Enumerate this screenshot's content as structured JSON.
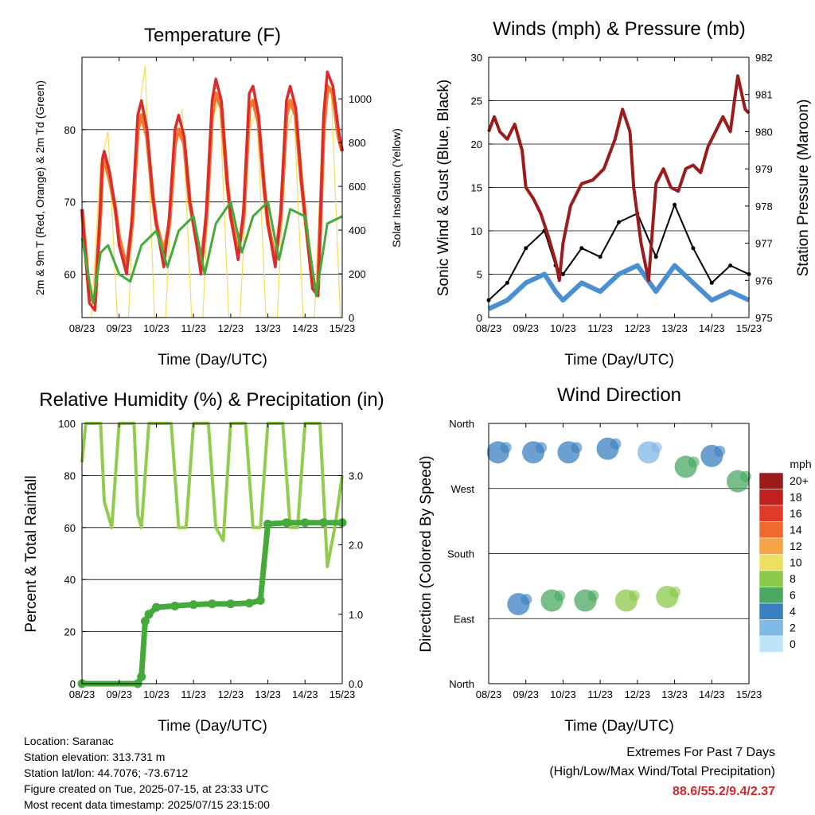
{
  "days": [
    "08/23",
    "09/23",
    "10/23",
    "11/23",
    "12/23",
    "13/23",
    "14/23",
    "15/23"
  ],
  "xlabel": "Time (Day/UTC)",
  "panels": {
    "temperature": {
      "title": "Temperature (F)",
      "ylabel_left": "2m & 9m T (Red, Orange) & 2m Td (Green)",
      "ylabel_right": "Solar Insolation (Yellow)",
      "left_ticks": [
        60,
        70,
        80
      ],
      "right_ticks": [
        0,
        200,
        400,
        600,
        800,
        1000
      ]
    },
    "wind": {
      "title": "Winds (mph) & Pressure (mb)",
      "ylabel_left": "Sonic Wind & Gust (Blue, Black)",
      "ylabel_right": "Station Pressure (Maroon)",
      "left_ticks": [
        0,
        5,
        10,
        15,
        20,
        25,
        30
      ],
      "right_ticks": [
        975,
        976,
        977,
        978,
        979,
        980,
        981,
        982
      ]
    },
    "humidity": {
      "title": "Relative Humidity (%) & Precipitation (in)",
      "ylabel_left": "Percent & Total Rainfall",
      "left_ticks": [
        0,
        20,
        40,
        60,
        80,
        100
      ],
      "right_ticks": [
        "0.0",
        "1.0",
        "2.0",
        "3.0"
      ]
    },
    "direction": {
      "title": "Wind Direction",
      "ylabel_left": "Direction (Colored By Speed)",
      "dir_labels": [
        "North",
        "East",
        "South",
        "West",
        "North"
      ],
      "legend_title": "mph",
      "legend_labels": [
        "20+",
        "18",
        "16",
        "14",
        "12",
        "10",
        "8",
        "6",
        "4",
        "2",
        "0"
      ]
    }
  },
  "chart_data": [
    {
      "type": "line",
      "title": "Temperature (F)",
      "xlabel": "Time (Day/UTC)",
      "ylabel": "2m & 9m T (Red, Orange) & 2m Td (Green)",
      "y2label": "Solar Insolation (Yellow)",
      "ylim": [
        54,
        90
      ],
      "y2lim": [
        0,
        1190
      ],
      "x_range_days": [
        0,
        7
      ],
      "series": [
        {
          "name": "2m T",
          "color": "#dd2a2a",
          "x": [
            0,
            0.2,
            0.35,
            0.5,
            0.55,
            0.6,
            0.75,
            0.9,
            1,
            1.2,
            1.35,
            1.5,
            1.6,
            1.75,
            1.9,
            2,
            2.2,
            2.35,
            2.5,
            2.6,
            2.75,
            2.9,
            3,
            3.2,
            3.35,
            3.5,
            3.6,
            3.75,
            3.9,
            4,
            4.2,
            4.35,
            4.5,
            4.6,
            4.75,
            4.9,
            5,
            5.2,
            5.35,
            5.5,
            5.6,
            5.75,
            5.9,
            6,
            6.2,
            6.35,
            6.5,
            6.6,
            6.75,
            6.9,
            7
          ],
          "values": [
            69,
            56,
            55,
            70,
            76,
            77,
            74,
            69,
            64,
            60,
            68,
            82,
            84,
            80,
            71,
            67,
            61,
            68,
            80,
            82,
            79,
            70,
            67,
            60,
            69,
            84,
            87,
            84,
            73,
            68,
            62,
            69,
            85,
            86,
            82,
            72,
            67,
            61,
            69,
            84,
            86,
            83,
            73,
            68,
            58,
            57,
            82,
            88,
            86,
            80,
            77
          ]
        },
        {
          "name": "9m T",
          "color": "#f07a2a",
          "x": [
            0,
            0.2,
            0.35,
            0.5,
            0.55,
            0.6,
            0.75,
            0.9,
            1,
            1.2,
            1.35,
            1.5,
            1.6,
            1.75,
            1.9,
            2,
            2.2,
            2.35,
            2.5,
            2.6,
            2.75,
            2.9,
            3,
            3.2,
            3.35,
            3.5,
            3.6,
            3.75,
            3.9,
            4,
            4.2,
            4.35,
            4.5,
            4.6,
            4.75,
            4.9,
            5,
            5.2,
            5.35,
            5.5,
            5.6,
            5.75,
            5.9,
            6,
            6.2,
            6.35,
            6.5,
            6.6,
            6.75,
            6.9,
            7
          ],
          "values": [
            69,
            57,
            56,
            69,
            75,
            76,
            73,
            69,
            65,
            61,
            67,
            80,
            82,
            79,
            71,
            67,
            63,
            67,
            78,
            80,
            78,
            70,
            67,
            61,
            68,
            82,
            85,
            83,
            73,
            68,
            63,
            68,
            83,
            84,
            81,
            72,
            67,
            62,
            68,
            82,
            84,
            82,
            73,
            68,
            59,
            58,
            80,
            86,
            85,
            79,
            77
          ]
        },
        {
          "name": "2m Td",
          "color": "#44aa3a",
          "x": [
            0,
            0.3,
            0.5,
            0.7,
            1,
            1.3,
            1.6,
            2,
            2.3,
            2.6,
            3,
            3.3,
            3.6,
            4,
            4.3,
            4.6,
            5,
            5.3,
            5.6,
            6,
            6.3,
            6.6,
            7
          ],
          "values": [
            65,
            56,
            63,
            64,
            60,
            59,
            64,
            66,
            61,
            66,
            68,
            60,
            67,
            70,
            63,
            68,
            70,
            62,
            69,
            68,
            57,
            67,
            68
          ]
        },
        {
          "name": "Solar Insolation",
          "axis": "right",
          "color": "#f4dc5a",
          "x": [
            0,
            0.25,
            0.5,
            0.7,
            0.95,
            1.25,
            1.5,
            1.7,
            1.95,
            2.25,
            2.5,
            2.7,
            2.95,
            3.25,
            3.5,
            3.7,
            3.95,
            4.25,
            4.5,
            4.7,
            4.95,
            5.25,
            5.5,
            5.7,
            5.95,
            6.25,
            6.5,
            6.7,
            6.95,
            7
          ],
          "values": [
            0,
            0,
            700,
            850,
            0,
            0,
            900,
            1150,
            0,
            0,
            850,
            950,
            0,
            0,
            900,
            1000,
            0,
            0,
            850,
            950,
            0,
            0,
            850,
            950,
            0,
            0,
            950,
            1050,
            0,
            0
          ]
        }
      ]
    },
    {
      "type": "line",
      "title": "Winds (mph) & Pressure (mb)",
      "xlabel": "Time (Day/UTC)",
      "ylabel": "Sonic Wind & Gust (Blue, Black)",
      "y2label": "Station Pressure (Maroon)",
      "ylim": [
        0,
        30
      ],
      "y2lim": [
        975,
        982
      ],
      "x_range_days": [
        0,
        7
      ],
      "series": [
        {
          "name": "Sonic Wind",
          "color": "#4a90d0",
          "x": [
            0,
            0.5,
            1,
            1.5,
            1.8,
            2,
            2.5,
            3,
            3.5,
            4,
            4.5,
            5,
            5.5,
            6,
            6.5,
            7
          ],
          "values": [
            1,
            2,
            4,
            5,
            3,
            2,
            4,
            3,
            5,
            6,
            3,
            6,
            4,
            2,
            3,
            2
          ]
        },
        {
          "name": "Gust",
          "color": "#000000",
          "x": [
            0,
            0.5,
            1,
            1.5,
            1.8,
            2,
            2.5,
            3,
            3.5,
            4,
            4.5,
            5,
            5.5,
            6,
            6.5,
            7
          ],
          "values": [
            2,
            4,
            8,
            10,
            6,
            5,
            8,
            7,
            11,
            12,
            7,
            13,
            8,
            4,
            6,
            5
          ]
        },
        {
          "name": "Station Pressure",
          "axis": "right",
          "color": "#9b1c1c",
          "x": [
            0,
            0.15,
            0.3,
            0.5,
            0.7,
            0.9,
            1,
            1.2,
            1.4,
            1.6,
            1.8,
            1.9,
            2,
            2.2,
            2.5,
            2.8,
            3.1,
            3.4,
            3.6,
            3.8,
            3.9,
            4.1,
            4.3,
            4.5,
            4.7,
            4.9,
            5.1,
            5.3,
            5.5,
            5.7,
            5.9,
            6.1,
            6.3,
            6.5,
            6.7,
            6.9,
            7
          ],
          "values": [
            980.0,
            980.4,
            980.0,
            979.8,
            980.2,
            979.5,
            978.5,
            978.2,
            977.8,
            977.2,
            976.5,
            976.0,
            977.0,
            978.0,
            978.6,
            978.7,
            979.0,
            979.8,
            980.6,
            980.0,
            978.5,
            977.0,
            976.0,
            978.6,
            979.0,
            978.5,
            978.4,
            979.0,
            979.1,
            978.9,
            979.6,
            980.0,
            980.4,
            980.0,
            981.5,
            980.6,
            980.5
          ]
        }
      ]
    },
    {
      "type": "line",
      "title": "Relative Humidity (%) & Precipitation (in)",
      "xlabel": "Time (Day/UTC)",
      "ylabel": "Percent & Total Rainfall",
      "ylim": [
        0,
        100
      ],
      "y2lim": [
        0,
        3.75
      ],
      "x_range_days": [
        0,
        7
      ],
      "series": [
        {
          "name": "Relative Humidity",
          "color": "#92cc4e",
          "x": [
            0,
            0.1,
            0.3,
            0.5,
            0.6,
            0.8,
            1,
            1.2,
            1.4,
            1.5,
            1.6,
            1.8,
            2,
            2.2,
            2.4,
            2.6,
            2.8,
            3,
            3.2,
            3.4,
            3.6,
            3.8,
            4,
            4.2,
            4.4,
            4.6,
            4.8,
            5,
            5.2,
            5.4,
            5.6,
            5.8,
            6,
            6.2,
            6.4,
            6.6,
            6.8,
            7
          ],
          "values": [
            85,
            100,
            100,
            100,
            70,
            60,
            100,
            100,
            100,
            65,
            60,
            100,
            100,
            100,
            100,
            60,
            60,
            100,
            100,
            100,
            60,
            55,
            100,
            100,
            100,
            60,
            60,
            100,
            100,
            100,
            60,
            60,
            100,
            100,
            100,
            45,
            60,
            80
          ]
        },
        {
          "name": "Total Precipitation",
          "axis": "right",
          "color": "#44aa3a",
          "x": [
            0,
            1.5,
            1.6,
            1.7,
            1.8,
            2,
            2.5,
            3,
            3.5,
            4,
            4.5,
            4.8,
            5,
            5.5,
            6,
            6.5,
            7
          ],
          "values": [
            0,
            0,
            0.1,
            0.9,
            1.0,
            1.1,
            1.12,
            1.14,
            1.15,
            1.15,
            1.16,
            1.2,
            2.3,
            2.32,
            2.32,
            2.32,
            2.32
          ]
        }
      ]
    },
    {
      "type": "scatter",
      "title": "Wind Direction",
      "xlabel": "Time (Day/UTC)",
      "ylabel": "Direction (Colored By Speed)",
      "y_categories": [
        "North",
        "East",
        "South",
        "West",
        "North"
      ],
      "x_range_days": [
        0,
        7
      ],
      "color_scale": {
        "title": "mph",
        "labels": [
          "20+",
          "18",
          "16",
          "14",
          "12",
          "10",
          "8",
          "6",
          "4",
          "2",
          "0"
        ],
        "colors": [
          "#9b1c1c",
          "#c02020",
          "#e03a2a",
          "#f06a30",
          "#f7a448",
          "#ede060",
          "#8cc84a",
          "#4aa860",
          "#3a80c0",
          "#80b8e6",
          "#bfe4f7"
        ]
      },
      "clusters": [
        {
          "x": 0.25,
          "direction_deg": 320,
          "speed": 3
        },
        {
          "x": 0.8,
          "direction_deg": 110,
          "speed": 4
        },
        {
          "x": 1.2,
          "direction_deg": 320,
          "speed": 3
        },
        {
          "x": 1.7,
          "direction_deg": 115,
          "speed": 5
        },
        {
          "x": 2.15,
          "direction_deg": 320,
          "speed": 3
        },
        {
          "x": 2.6,
          "direction_deg": 115,
          "speed": 5
        },
        {
          "x": 3.2,
          "direction_deg": 325,
          "speed": 3
        },
        {
          "x": 3.7,
          "direction_deg": 115,
          "speed": 7
        },
        {
          "x": 4.3,
          "direction_deg": 320,
          "speed": 2
        },
        {
          "x": 4.8,
          "direction_deg": 120,
          "speed": 7
        },
        {
          "x": 5.3,
          "direction_deg": 300,
          "speed": 5
        },
        {
          "x": 6.0,
          "direction_deg": 315,
          "speed": 4
        },
        {
          "x": 6.7,
          "direction_deg": 280,
          "speed": 5
        }
      ]
    }
  ],
  "footer": {
    "location": "Location: Saranac",
    "elevation": "Station elevation: 313.731 m",
    "latlon": "Station lat/lon: 44.7076; -73.6712",
    "created": "Figure created on Tue, 2025-07-15, at 23:33 UTC",
    "recent": "Most recent data timestamp: 2025/07/15 23:15:00",
    "extremes_title": "Extremes For Past 7 Days",
    "extremes_desc": "(High/Low/Max Wind/Total Precipitation)",
    "extremes_values": "88.6/55.2/9.4/2.37"
  }
}
